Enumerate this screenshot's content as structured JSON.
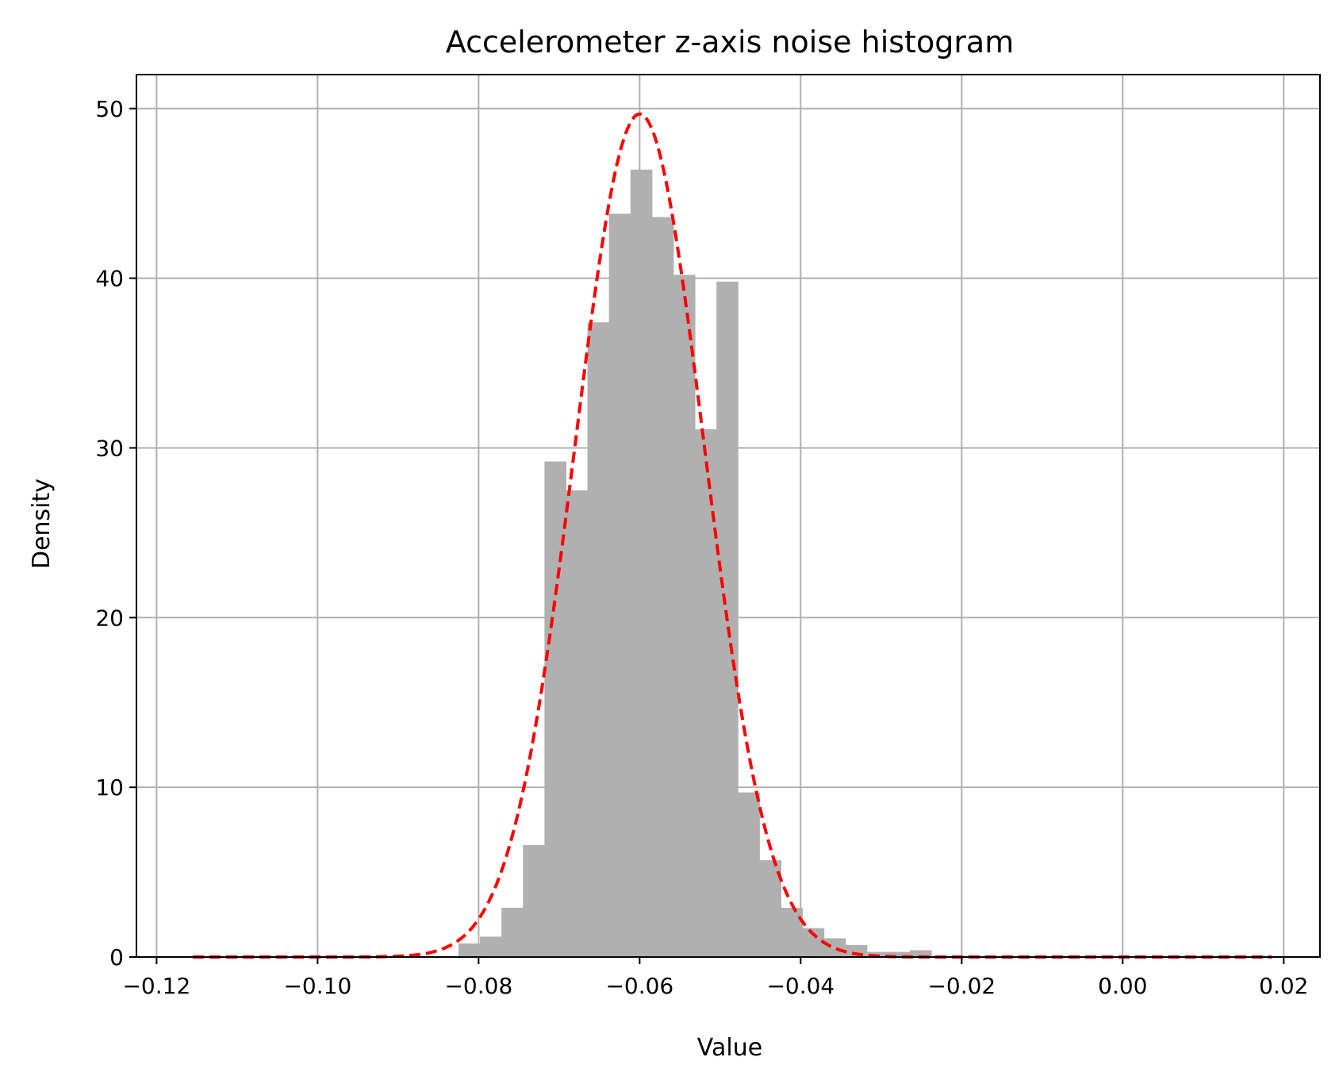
{
  "chart_data": {
    "type": "bar",
    "title": "Accelerometer z-axis noise histogram",
    "xlabel": "Value",
    "ylabel": "Density",
    "xlim": [
      -0.1225,
      0.0245
    ],
    "ylim": [
      0,
      52
    ],
    "grid": true,
    "xticks": [
      -0.12,
      -0.1,
      -0.08,
      -0.06,
      -0.04,
      -0.02,
      0.0,
      0.02
    ],
    "xtick_labels": [
      "−0.12",
      "−0.10",
      "−0.08",
      "−0.06",
      "−0.04",
      "−0.02",
      "0.00",
      "0.02"
    ],
    "yticks": [
      0,
      10,
      20,
      30,
      40,
      50
    ],
    "ytick_labels": [
      "0",
      "10",
      "20",
      "30",
      "40",
      "50"
    ],
    "bin_width": 0.00267,
    "bins": [
      {
        "x": -0.0825,
        "density": 0.8
      },
      {
        "x": -0.07983,
        "density": 1.2
      },
      {
        "x": -0.07716,
        "density": 2.9
      },
      {
        "x": -0.07449,
        "density": 6.6
      },
      {
        "x": -0.07182,
        "density": 29.2
      },
      {
        "x": -0.06915,
        "density": 27.5
      },
      {
        "x": -0.06648,
        "density": 37.4
      },
      {
        "x": -0.06381,
        "density": 43.8
      },
      {
        "x": -0.06114,
        "density": 46.4
      },
      {
        "x": -0.05847,
        "density": 43.6
      },
      {
        "x": -0.0558,
        "density": 40.2
      },
      {
        "x": -0.05313,
        "density": 31.1
      },
      {
        "x": -0.05046,
        "density": 39.8
      },
      {
        "x": -0.04779,
        "density": 9.7
      },
      {
        "x": -0.04512,
        "density": 5.7
      },
      {
        "x": -0.04245,
        "density": 2.9
      },
      {
        "x": -0.03978,
        "density": 1.7
      },
      {
        "x": -0.03711,
        "density": 1.1
      },
      {
        "x": -0.03444,
        "density": 0.7
      },
      {
        "x": -0.03177,
        "density": 0.3
      },
      {
        "x": -0.0291,
        "density": 0.3
      },
      {
        "x": -0.02643,
        "density": 0.4
      }
    ],
    "fit_curve": {
      "type": "normal",
      "mean": -0.06,
      "std": 0.00803,
      "x_range": [
        -0.1155,
        0.0185
      ],
      "color": "#ff0000",
      "style": "dashed"
    },
    "bar_color": "#b0b0b0"
  }
}
